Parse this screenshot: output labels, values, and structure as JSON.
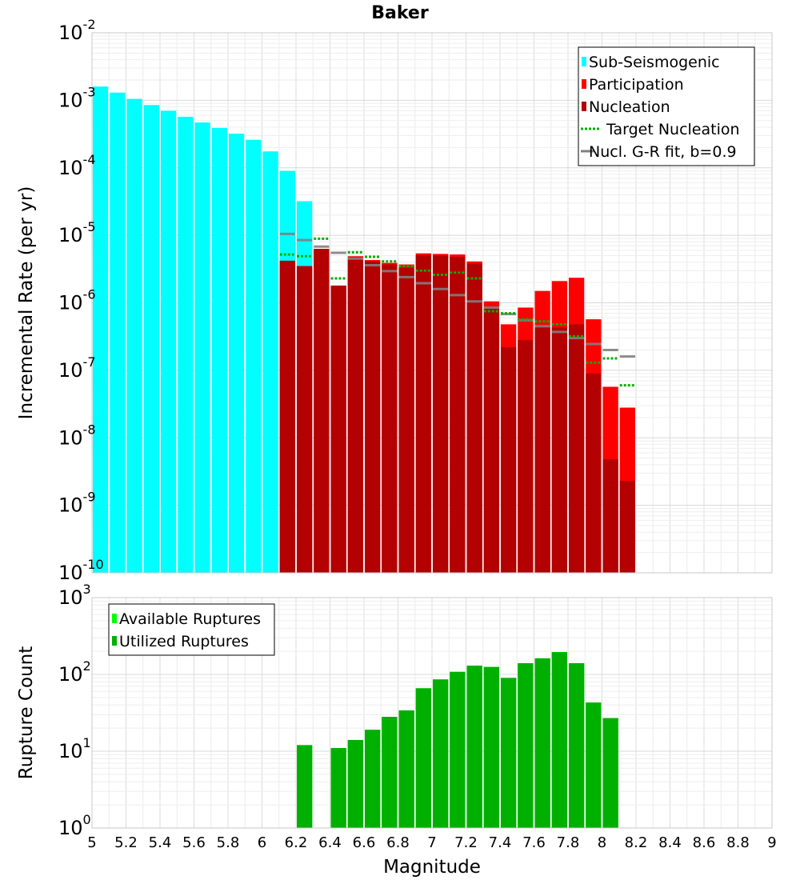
{
  "title": "Baker",
  "chart_data": [
    {
      "type": "bar",
      "scale": "log",
      "ylabel": "Incremental Rate (per yr)",
      "ylim_exponents": [
        -10,
        -2
      ],
      "xlim": [
        5,
        9
      ],
      "grid": true,
      "legend_position": "top-right",
      "legend": [
        {
          "label": "Sub-Seismogenic",
          "color": "#00ffff",
          "kind": "swatch"
        },
        {
          "label": "Participation",
          "color": "#ff0000",
          "kind": "swatch"
        },
        {
          "label": "Nucleation",
          "color": "#b30000",
          "kind": "swatch"
        },
        {
          "label": "Target Nucleation",
          "color": "#00b000",
          "kind": "dotted"
        },
        {
          "label": "Nucl. G-R fit, b=0.9",
          "color": "#808080",
          "kind": "line"
        }
      ],
      "x": [
        5.05,
        5.15,
        5.25,
        5.35,
        5.45,
        5.55,
        5.65,
        5.75,
        5.85,
        5.95,
        6.05,
        6.15,
        6.25,
        6.35,
        6.45,
        6.55,
        6.65,
        6.75,
        6.85,
        6.95,
        7.05,
        7.15,
        7.25,
        7.35,
        7.45,
        7.55,
        7.65,
        7.75,
        7.85,
        7.95,
        8.05,
        8.15
      ],
      "series": [
        {
          "name": "Sub-Seismogenic",
          "color": "#00ffff",
          "values": [
            0.0016,
            0.0013,
            0.00105,
            0.00085,
            0.0007,
            0.00057,
            0.00047,
            0.00039,
            0.00032,
            0.00026,
            0.000175,
            9e-05,
            3.2e-05,
            null,
            null,
            null,
            null,
            null,
            null,
            null,
            null,
            null,
            null,
            null,
            null,
            null,
            null,
            null,
            null,
            null,
            null,
            null
          ]
        },
        {
          "name": "Participation",
          "color": "#ff0000",
          "values": [
            null,
            null,
            null,
            null,
            null,
            null,
            null,
            null,
            null,
            null,
            null,
            4.2e-06,
            3.5e-06,
            6.3e-06,
            1.8e-06,
            4.9e-06,
            4.3e-06,
            3.9e-06,
            3.7e-06,
            5.4e-06,
            5.3e-06,
            5.2e-06,
            4.1e-06,
            1.05e-06,
            4.8e-07,
            8.5e-07,
            1.5e-06,
            2.1e-06,
            2.35e-06,
            5.7e-07,
            5.7e-08,
            2.8e-08
          ]
        },
        {
          "name": "Nucleation",
          "color": "#b30000",
          "values": [
            null,
            null,
            null,
            null,
            null,
            null,
            null,
            null,
            null,
            null,
            null,
            4.2e-06,
            3.5e-06,
            6.3e-06,
            1.8e-06,
            4.5e-06,
            4.1e-06,
            3.7e-06,
            3.3e-06,
            5.1e-06,
            5e-06,
            4.8e-06,
            3.8e-06,
            8.5e-07,
            2.2e-07,
            2.8e-07,
            4.3e-07,
            4.3e-07,
            4.8e-07,
            9e-08,
            4.8e-09,
            2.3e-09
          ]
        },
        {
          "name": "Target Nucleation",
          "color": "#00b000",
          "values": [
            null,
            null,
            null,
            null,
            null,
            null,
            null,
            null,
            null,
            null,
            null,
            5.2e-06,
            4.9e-06,
            8.9e-06,
            2.3e-06,
            5.6e-06,
            4.8e-06,
            4.1e-06,
            3.5e-06,
            3e-06,
            2.6e-06,
            2.8e-06,
            2.3e-06,
            7.5e-07,
            7e-07,
            5.7e-07,
            5.3e-07,
            4.8e-07,
            3.2e-07,
            1.3e-07,
            1.5e-07,
            6e-08
          ]
        },
        {
          "name": "Nucl. G-R fit, b=0.9",
          "color": "#808080",
          "values": [
            null,
            null,
            null,
            null,
            null,
            null,
            null,
            null,
            null,
            null,
            null,
            1.05e-05,
            8.5e-06,
            6.8e-06,
            5.5e-06,
            4.5e-06,
            3.6e-06,
            2.95e-06,
            2.4e-06,
            1.95e-06,
            1.6e-06,
            1.3e-06,
            1.05e-06,
            8.5e-07,
            6.8e-07,
            5.5e-07,
            4.5e-07,
            3.7e-07,
            3e-07,
            2.45e-07,
            2e-07,
            1.6e-07
          ]
        }
      ]
    },
    {
      "type": "bar",
      "scale": "log",
      "xlabel": "Magnitude",
      "ylabel": "Rupture Count",
      "ylim_exponents": [
        0,
        3
      ],
      "xlim": [
        5,
        9
      ],
      "xticks": [
        "5",
        "5.2",
        "5.4",
        "5.6",
        "5.8",
        "6",
        "6.2",
        "6.4",
        "6.6",
        "6.8",
        "7",
        "7.2",
        "7.4",
        "7.6",
        "7.8",
        "8",
        "8.2",
        "8.4",
        "8.6",
        "8.8",
        "9"
      ],
      "grid": true,
      "legend_position": "top-left",
      "legend": [
        {
          "label": "Available Ruptures",
          "color": "#00ff00",
          "kind": "swatch"
        },
        {
          "label": "Utilized Ruptures",
          "color": "#00b000",
          "kind": "swatch"
        }
      ],
      "x": [
        6.25,
        6.45,
        6.55,
        6.65,
        6.75,
        6.85,
        6.95,
        7.05,
        7.15,
        7.25,
        7.35,
        7.45,
        7.55,
        7.65,
        7.75,
        7.85,
        7.95,
        8.05
      ],
      "series": [
        {
          "name": "Available Ruptures",
          "color": "#00ff00",
          "values": [
            12,
            11,
            14,
            19,
            28,
            34,
            66,
            86,
            108,
            130,
            125,
            90,
            140,
            162,
            195,
            140,
            43,
            27
          ]
        },
        {
          "name": "Utilized Ruptures",
          "color": "#00b000",
          "values": [
            12,
            11,
            14,
            19,
            28,
            34,
            66,
            86,
            108,
            130,
            125,
            90,
            140,
            162,
            195,
            140,
            43,
            27
          ]
        }
      ]
    }
  ]
}
